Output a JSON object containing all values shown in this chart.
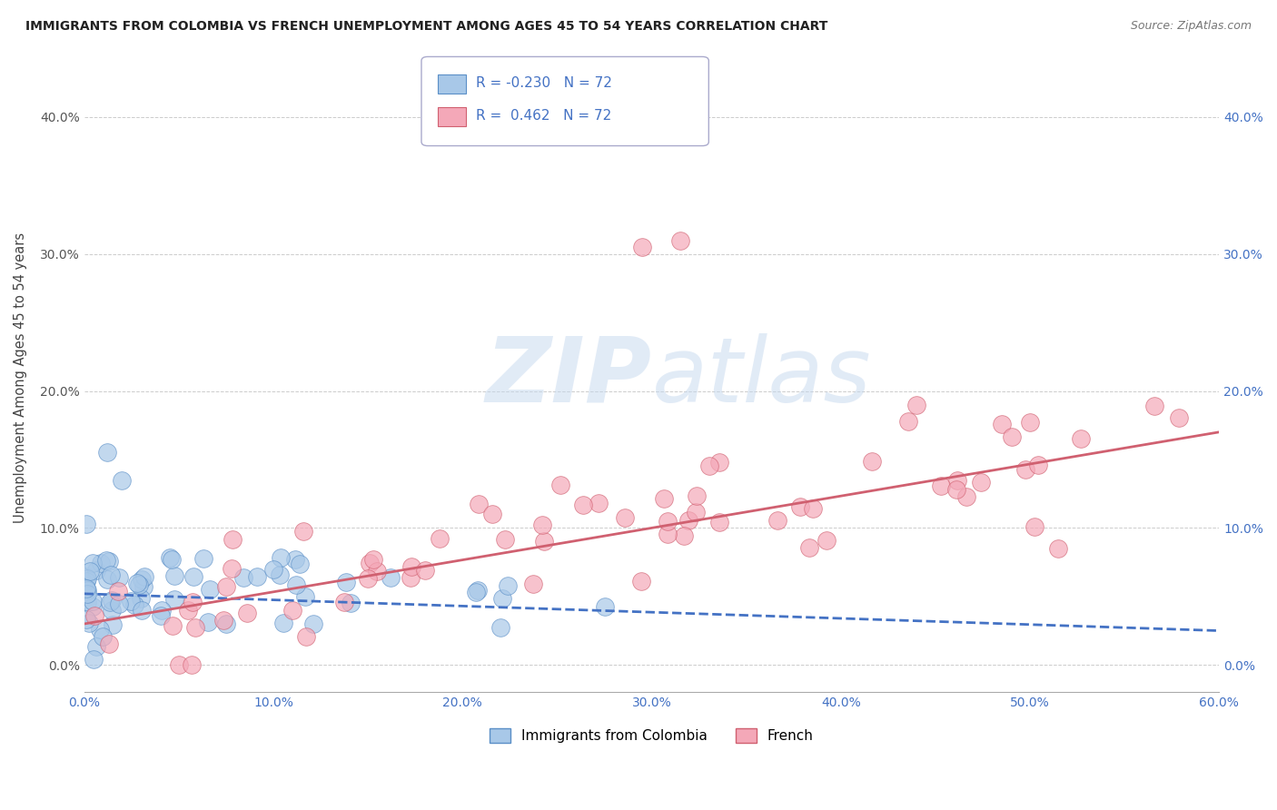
{
  "title": "IMMIGRANTS FROM COLOMBIA VS FRENCH UNEMPLOYMENT AMONG AGES 45 TO 54 YEARS CORRELATION CHART",
  "source": "Source: ZipAtlas.com",
  "ylabel": "Unemployment Among Ages 45 to 54 years",
  "xlim": [
    0.0,
    0.6
  ],
  "ylim": [
    -0.02,
    0.44
  ],
  "xticks": [
    0.0,
    0.1,
    0.2,
    0.3,
    0.4,
    0.5,
    0.6
  ],
  "xticklabels": [
    "0.0%",
    "10.0%",
    "20.0%",
    "30.0%",
    "40.0%",
    "50.0%",
    "60.0%"
  ],
  "yticks": [
    0.0,
    0.1,
    0.2,
    0.3,
    0.4
  ],
  "yticklabels": [
    "0.0%",
    "10.0%",
    "20.0%",
    "30.0%",
    "40.0%"
  ],
  "series1_color": "#a8c8e8",
  "series1_edge": "#5b8fc7",
  "series2_color": "#f4a8b8",
  "series2_edge": "#d06070",
  "trendline1_color": "#4472c4",
  "trendline2_color": "#d06070",
  "R1": -0.23,
  "N1": 72,
  "R2": 0.462,
  "N2": 72,
  "legend_label1": "Immigrants from Colombia",
  "legend_label2": "French",
  "watermark_zip": "ZIP",
  "watermark_atlas": "atlas",
  "background_color": "#ffffff",
  "legend_text_color": "#4472c4",
  "tick_color_x": "#4472c4",
  "tick_color_y_left": "#555555",
  "tick_color_y_right": "#4472c4",
  "grid_color": "#cccccc"
}
